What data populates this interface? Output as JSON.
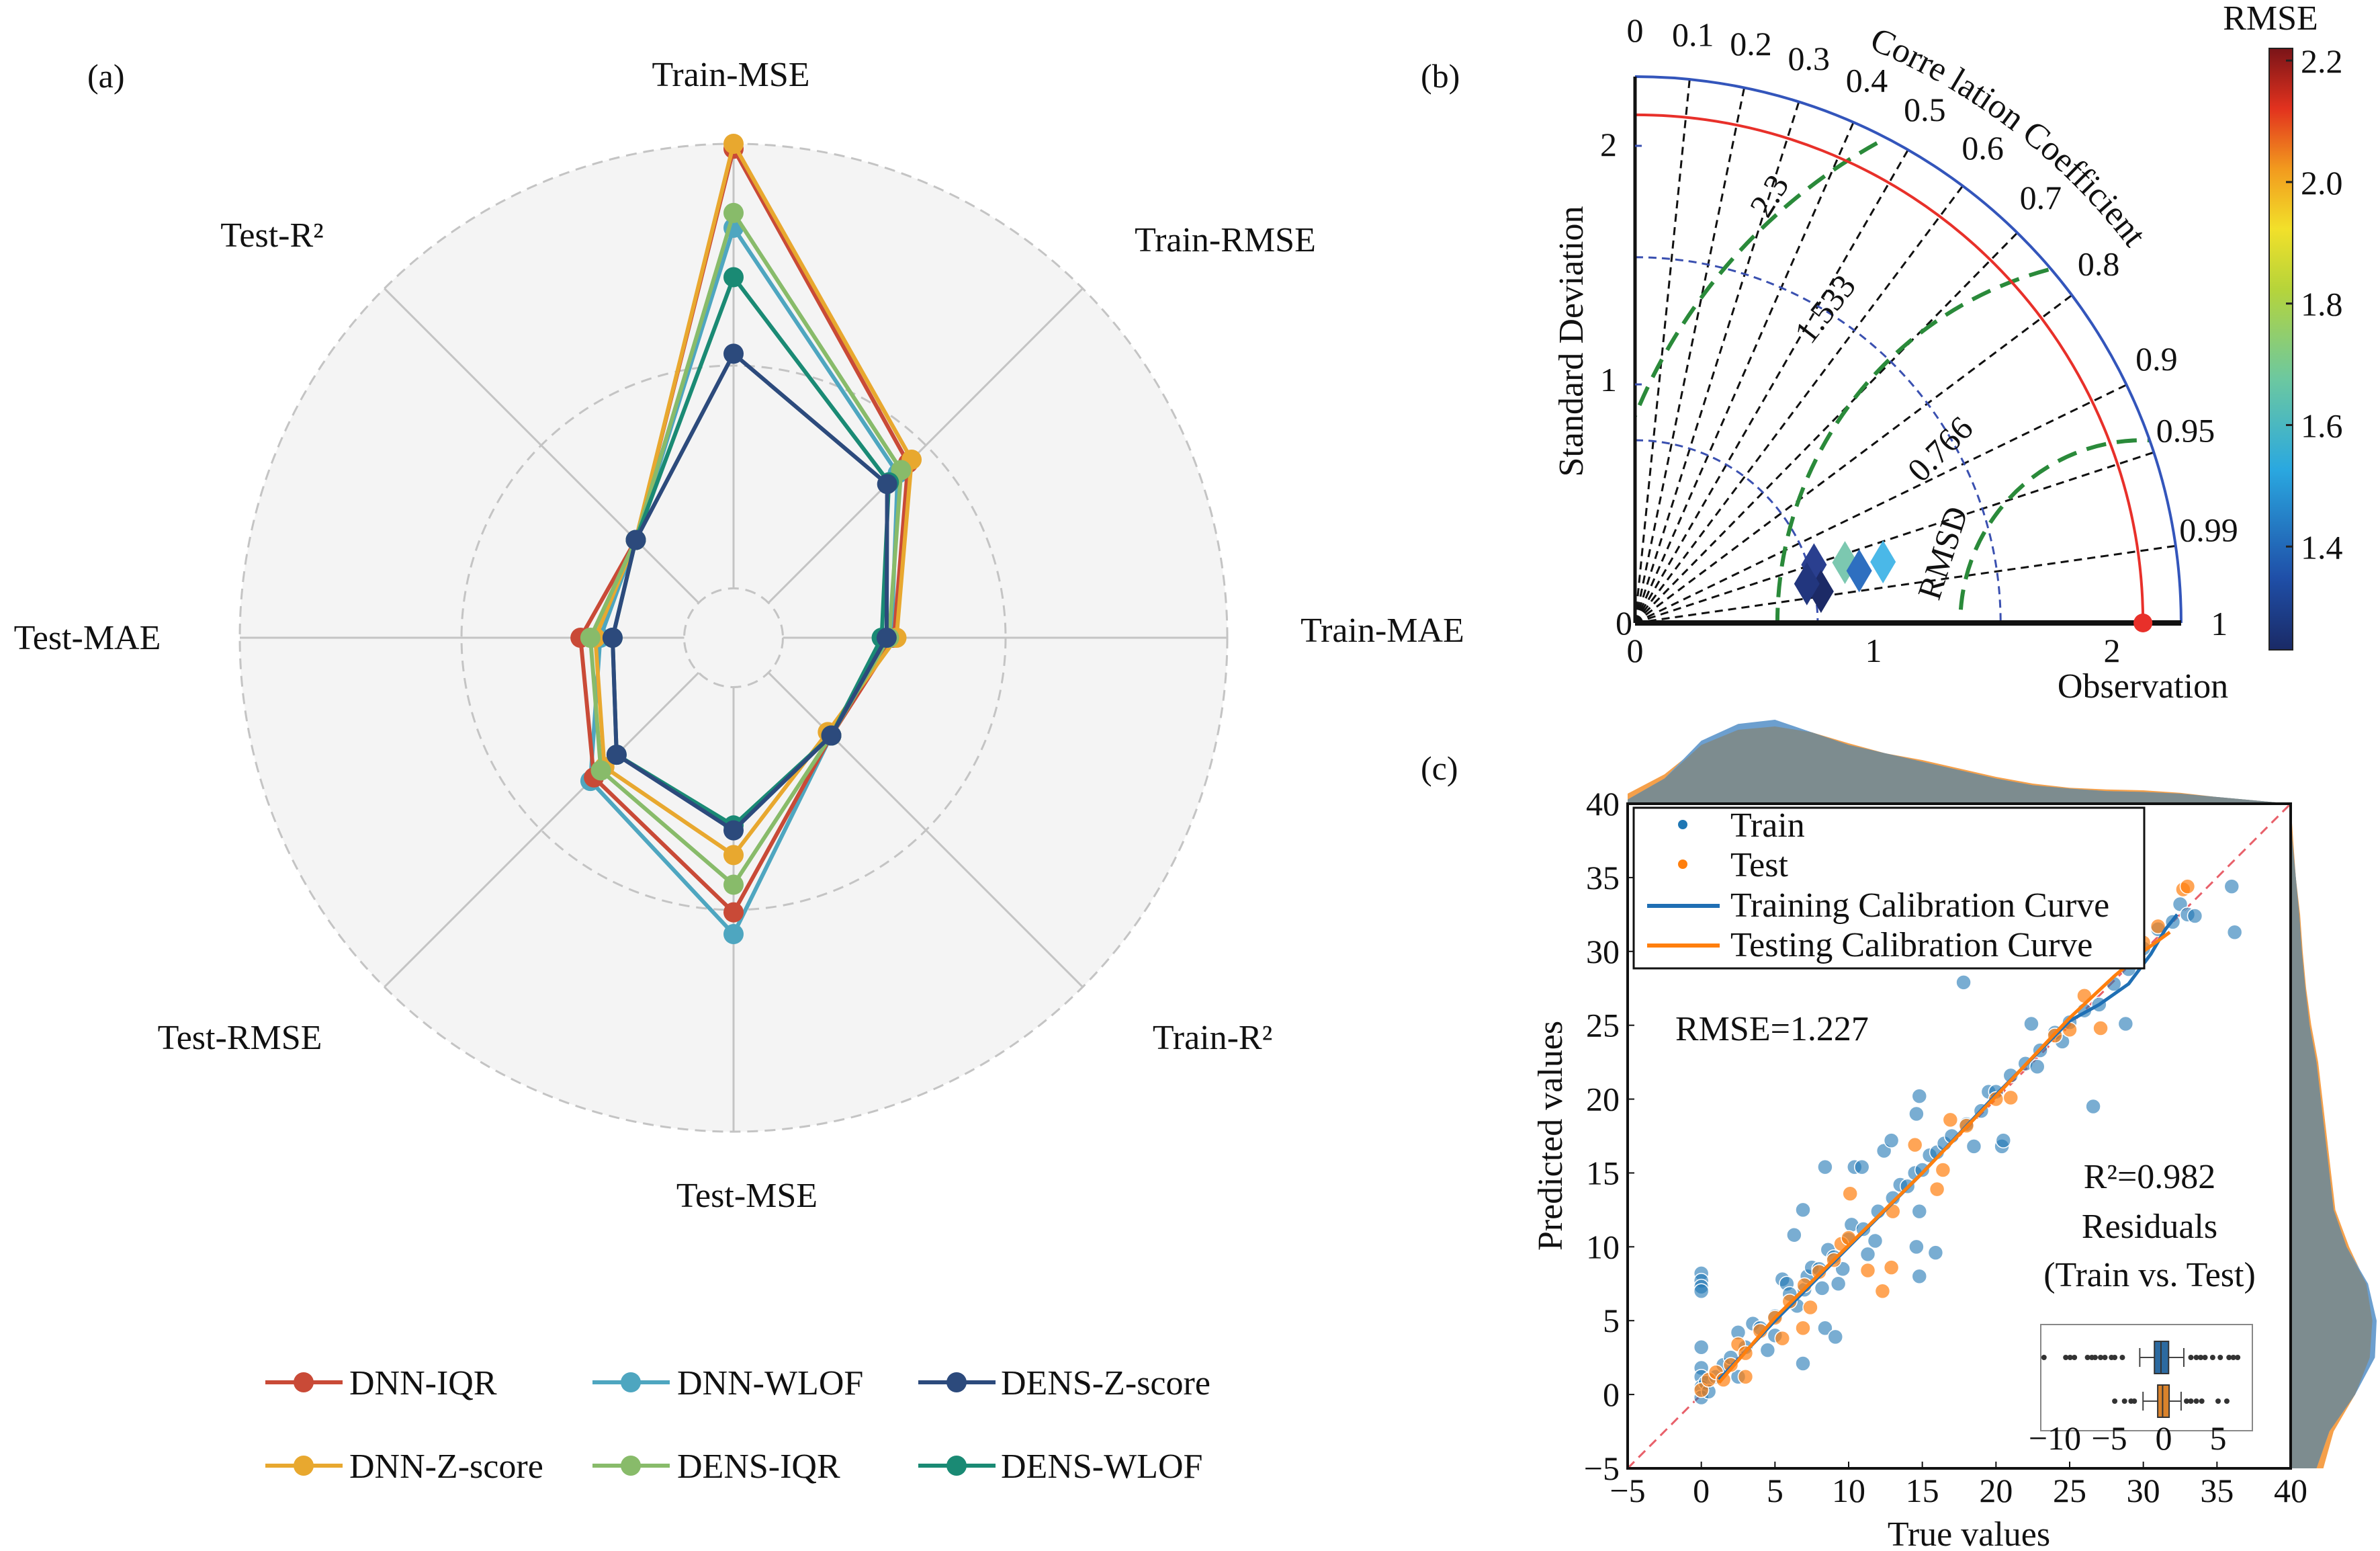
{
  "panels": {
    "a": "(a)",
    "b": "(b)",
    "c": "(c)"
  },
  "chart_data": [
    {
      "type": "radar",
      "axes": [
        "Train-MSE",
        "Train-RMSE",
        "Train-MAE",
        "Train-R²",
        "Test-MSE",
        "Test-RMSE",
        "Test-MAE",
        "Test-R²"
      ],
      "radial_range": [
        0,
        1
      ],
      "grid_rings": [
        0.1,
        0.551,
        1.0
      ],
      "legend_position": "bottom",
      "series": [
        {
          "name": "DNN-IQR",
          "color": "#c94a37",
          "values": [
            0.99,
            0.5,
            0.325,
            0.28,
            0.556,
            0.4,
            0.31,
            0.28
          ]
        },
        {
          "name": "DNN-WLOF",
          "color": "#4ea6c0",
          "values": [
            0.83,
            0.47,
            0.32,
            0.28,
            0.6,
            0.41,
            0.27,
            0.28
          ]
        },
        {
          "name": "DENS-Z-score",
          "color": "#2c4a7c",
          "values": [
            0.575,
            0.44,
            0.31,
            0.28,
            0.39,
            0.335,
            0.245,
            0.28
          ]
        },
        {
          "name": "DNN-Z-score",
          "color": "#e8a82f",
          "values": [
            1.0,
            0.51,
            0.33,
            0.27,
            0.44,
            0.37,
            0.28,
            0.28
          ]
        },
        {
          "name": "DENS-IQR",
          "color": "#88bb6a",
          "values": [
            0.86,
            0.48,
            0.315,
            0.28,
            0.5,
            0.38,
            0.29,
            0.28
          ]
        },
        {
          "name": "DENS-WLOF",
          "color": "#1a8a74",
          "values": [
            0.73,
            0.445,
            0.3,
            0.28,
            0.38,
            0.335,
            0.245,
            0.28
          ]
        }
      ]
    },
    {
      "type": "taylor",
      "ylabel": "Standard Deviation",
      "xlabel": "Observation",
      "correlation_label": "Corre lation Coefficient",
      "correlation_ticks": [
        "0",
        "0.1",
        "0.2",
        "0.3",
        "0.4",
        "0.5",
        "0.6",
        "0.7",
        "0.8",
        "0.9",
        "0.95",
        "0.99",
        "1"
      ],
      "std_ticks": [
        "0",
        "1",
        "2"
      ],
      "x_ticks": [
        "0",
        "1",
        "2"
      ],
      "std_max": 2.29,
      "observation_std": 2.13,
      "std_circles": [
        0.766,
        1.533
      ],
      "rmsd_label": "RMSD",
      "rmsd_contours": [
        0.766,
        1.533,
        2.3
      ],
      "rmsd_contour_labels": [
        "0.766",
        "1.533",
        "2.3"
      ],
      "colors": {
        "outer_arc": "#3355bb",
        "observation_arc": "#e8302a",
        "rmsd": "#2a8a3a",
        "std_circles": "#3a50b0"
      },
      "points": [
        {
          "std": 0.789,
          "corr": 0.951,
          "rmse": 1.38,
          "color": "#2a3f8f"
        },
        {
          "std": 0.791,
          "corr": 0.986,
          "rmse": 1.27,
          "color": "#1c2a66"
        },
        {
          "std": 0.739,
          "corr": 0.975,
          "rmse": 1.31,
          "color": "#22367e"
        },
        {
          "std": 0.916,
          "corr": 0.961,
          "rmse": 1.63,
          "color": "#7cc8b0"
        },
        {
          "std": 0.965,
          "corr": 0.974,
          "rmse": 1.45,
          "color": "#2e6fc0"
        },
        {
          "std": 1.071,
          "corr": 0.971,
          "rmse": 1.55,
          "color": "#4ab8e8"
        }
      ],
      "colorbar": {
        "label": "RMSE",
        "ticks": [
          "1.4",
          "1.6",
          "1.8",
          "2.0",
          "2.2"
        ],
        "range": [
          1.23,
          2.22
        ]
      }
    },
    {
      "type": "scatter",
      "xlabel": "True values",
      "ylabel": "Predicted values",
      "xlim": [
        -5,
        40
      ],
      "ylim": [
        -5,
        40
      ],
      "xticks": [
        "−5",
        "0",
        "5",
        "10",
        "15",
        "20",
        "25",
        "30",
        "35",
        "40"
      ],
      "yticks": [
        "−5",
        "0",
        "5",
        "10",
        "15",
        "20",
        "25",
        "30",
        "35",
        "40"
      ],
      "legend_position": "top-left",
      "legend": [
        "Train",
        "Test",
        "Training Calibration Curve",
        "Testing Calibration Curve"
      ],
      "annotations": {
        "rmse": "RMSE=1.227",
        "r2": "R²=0.982",
        "residuals_title": "Residuals",
        "residuals_subtitle": "(Train vs. Test)"
      },
      "series": [
        {
          "name": "Train",
          "color": "#1f77b4",
          "points": [
            [
              0,
              8.2
            ],
            [
              0,
              7.7
            ],
            [
              0,
              7.3
            ],
            [
              0,
              7.0
            ],
            [
              0,
              3.2
            ],
            [
              0,
              1.8
            ],
            [
              0,
              1.2
            ],
            [
              0,
              0.5
            ],
            [
              0,
              -0.2
            ],
            [
              0.3,
              0.8
            ],
            [
              0.5,
              0.2
            ],
            [
              1,
              1.2
            ],
            [
              1.5,
              2.0
            ],
            [
              2,
              2.5
            ],
            [
              2.5,
              1.2
            ],
            [
              2.5,
              4.2
            ],
            [
              3,
              3.2
            ],
            [
              3.5,
              4.8
            ],
            [
              4,
              4.5
            ],
            [
              4.5,
              3.0
            ],
            [
              5,
              5.3
            ],
            [
              5,
              4.0
            ],
            [
              5.5,
              7.8
            ],
            [
              5.8,
              7.5
            ],
            [
              6,
              6.8
            ],
            [
              6.3,
              10.8
            ],
            [
              6.5,
              6.0
            ],
            [
              6.9,
              2.1
            ],
            [
              6.9,
              12.5
            ],
            [
              7,
              7.1
            ],
            [
              7.2,
              8.0
            ],
            [
              7.5,
              8.6
            ],
            [
              8,
              8.5
            ],
            [
              8.2,
              7.2
            ],
            [
              8.4,
              15.4
            ],
            [
              8.4,
              4.5
            ],
            [
              8.6,
              9.8
            ],
            [
              9,
              9.3
            ],
            [
              9.1,
              3.9
            ],
            [
              9.3,
              7.5
            ],
            [
              9.6,
              8.5
            ],
            [
              10,
              10.5
            ],
            [
              10.2,
              11.5
            ],
            [
              10.4,
              15.4
            ],
            [
              10.9,
              15.4
            ],
            [
              11,
              11.2
            ],
            [
              11.3,
              9.5
            ],
            [
              11.8,
              10.4
            ],
            [
              12,
              12.4
            ],
            [
              12.4,
              16.5
            ],
            [
              12.9,
              17.2
            ],
            [
              13,
              13.3
            ],
            [
              13.5,
              14.2
            ],
            [
              14,
              14.1
            ],
            [
              14.5,
              15.0
            ],
            [
              14.6,
              19.0
            ],
            [
              14.6,
              10.0
            ],
            [
              14.8,
              20.2
            ],
            [
              14.8,
              12.4
            ],
            [
              14.8,
              8.0
            ],
            [
              15,
              15.2
            ],
            [
              15.5,
              16.2
            ],
            [
              15.9,
              9.6
            ],
            [
              16,
              16.4
            ],
            [
              16.5,
              17.0
            ],
            [
              17,
              17.5
            ],
            [
              17.8,
              27.9
            ],
            [
              18,
              18.3
            ],
            [
              18.5,
              16.8
            ],
            [
              19,
              19.2
            ],
            [
              19.5,
              20.5
            ],
            [
              20,
              20.5
            ],
            [
              20.4,
              16.8
            ],
            [
              20.5,
              17.2
            ],
            [
              21,
              21.6
            ],
            [
              22,
              22.4
            ],
            [
              22.4,
              25.1
            ],
            [
              22.8,
              22.2
            ],
            [
              23,
              23.3
            ],
            [
              24,
              24.5
            ],
            [
              24.5,
              23.9
            ],
            [
              25,
              25.2
            ],
            [
              26,
              26.0
            ],
            [
              26.6,
              19.5
            ],
            [
              27,
              26.4
            ],
            [
              28,
              27.8
            ],
            [
              28.8,
              25.1
            ],
            [
              29,
              28.8
            ],
            [
              30,
              30.2
            ],
            [
              31,
              31.5
            ],
            [
              32,
              32.0
            ],
            [
              32.5,
              33.2
            ],
            [
              33,
              32.5
            ],
            [
              33.5,
              32.4
            ],
            [
              36,
              34.4
            ],
            [
              36.2,
              31.3
            ]
          ]
        },
        {
          "name": "Test",
          "color": "#ff7f0e",
          "points": [
            [
              0,
              0.3
            ],
            [
              0.5,
              1.0
            ],
            [
              1,
              1.5
            ],
            [
              1.5,
              1.0
            ],
            [
              2,
              2.0
            ],
            [
              2.5,
              3.4
            ],
            [
              3,
              2.8
            ],
            [
              3,
              1.2
            ],
            [
              4,
              4.3
            ],
            [
              5,
              5.2
            ],
            [
              5.5,
              3.8
            ],
            [
              6,
              6.3
            ],
            [
              6.9,
              4.5
            ],
            [
              7,
              7.4
            ],
            [
              7.4,
              5.9
            ],
            [
              8,
              8.3
            ],
            [
              9,
              9.1
            ],
            [
              9.5,
              10.2
            ],
            [
              10.1,
              13.6
            ],
            [
              10,
              10.6
            ],
            [
              11.3,
              8.4
            ],
            [
              12.3,
              7.0
            ],
            [
              12.9,
              8.6
            ],
            [
              13,
              12.4
            ],
            [
              14.5,
              16.9
            ],
            [
              16,
              13.9
            ],
            [
              16.4,
              15.2
            ],
            [
              16.9,
              18.6
            ],
            [
              18,
              18.2
            ],
            [
              20,
              20.0
            ],
            [
              21,
              20.1
            ],
            [
              24,
              24.3
            ],
            [
              25,
              24.7
            ],
            [
              26,
              27.0
            ],
            [
              27.1,
              24.8
            ],
            [
              30,
              30.6
            ],
            [
              31,
              31.7
            ],
            [
              32.7,
              34.2
            ],
            [
              33,
              34.4
            ]
          ]
        }
      ],
      "curves": [
        {
          "name": "Training Calibration Curve",
          "color": "#1f6fb4",
          "points": [
            [
              1.2,
              1.0
            ],
            [
              5,
              5.0
            ],
            [
              10,
              10.0
            ],
            [
              15,
              15.0
            ],
            [
              20,
              20.3
            ],
            [
              25,
              25.3
            ],
            [
              27,
              26.4
            ],
            [
              29,
              27.8
            ],
            [
              30.5,
              29.8
            ],
            [
              31.5,
              31.5
            ],
            [
              32.3,
              32.5
            ]
          ]
        },
        {
          "name": "Testing Calibration Curve",
          "color": "#ff7f0e",
          "points": [
            [
              1.2,
              0.8
            ],
            [
              5,
              5.2
            ],
            [
              10,
              10.1
            ],
            [
              15,
              15.0
            ],
            [
              20,
              20.2
            ],
            [
              25,
              25.5
            ],
            [
              28,
              28.3
            ],
            [
              30,
              30.0
            ],
            [
              31.8,
              31.3
            ]
          ]
        }
      ],
      "marginal_x": {
        "x": [
          -5,
          -2.5,
          0,
          2.5,
          5,
          7.5,
          10,
          12.5,
          15,
          17.5,
          20,
          22.5,
          25,
          27.5,
          30,
          32.5,
          35,
          37.5,
          40
        ],
        "train": [
          0.05,
          0.3,
          0.75,
          0.95,
          1.0,
          0.85,
          0.7,
          0.6,
          0.5,
          0.4,
          0.3,
          0.22,
          0.18,
          0.15,
          0.14,
          0.12,
          0.08,
          0.04,
          0.0
        ],
        "test": [
          0.12,
          0.35,
          0.7,
          0.88,
          0.92,
          0.85,
          0.72,
          0.6,
          0.52,
          0.42,
          0.32,
          0.24,
          0.19,
          0.17,
          0.16,
          0.13,
          0.08,
          0.04,
          0.0
        ]
      },
      "marginal_y": {
        "y": [
          -5,
          -2.5,
          0,
          2.5,
          5,
          7.5,
          10,
          12.5,
          15,
          17.5,
          20,
          22.5,
          25,
          27.5,
          30,
          32.5,
          35,
          37.5,
          40
        ],
        "train": [
          0.3,
          0.45,
          0.75,
          0.98,
          1.0,
          0.9,
          0.65,
          0.5,
          0.45,
          0.4,
          0.35,
          0.3,
          0.22,
          0.17,
          0.13,
          0.1,
          0.06,
          0.02,
          0.0
        ],
        "test": [
          0.38,
          0.5,
          0.75,
          0.92,
          0.95,
          0.88,
          0.68,
          0.52,
          0.47,
          0.42,
          0.37,
          0.32,
          0.24,
          0.18,
          0.14,
          0.11,
          0.06,
          0.03,
          0.0
        ]
      },
      "residuals_boxplot": {
        "xticks": [
          "−10",
          "−5",
          "0",
          "5"
        ],
        "train": {
          "color": "#2c6aa0",
          "whislo": -2.2,
          "q1": -0.85,
          "med": -0.25,
          "q3": 0.45,
          "whishi": 1.85,
          "fliers": [
            -11,
            -9,
            -8.6,
            -8.2,
            -7,
            -6.6,
            -6.3,
            -5.8,
            -5.4,
            -4.8,
            -4.5,
            -3.8,
            2.5,
            3.0,
            3.4,
            3.8,
            4.5,
            5.2,
            6,
            6.4,
            6.8
          ]
        },
        "test": {
          "color": "#d9822b",
          "whislo": -1.9,
          "q1": -0.55,
          "med": -0.1,
          "q3": 0.5,
          "whishi": 1.6,
          "fliers": [
            -4.5,
            -3.6,
            -3,
            -2.7,
            2.1,
            2.5,
            3,
            3.5,
            5,
            5.8
          ]
        }
      }
    }
  ]
}
